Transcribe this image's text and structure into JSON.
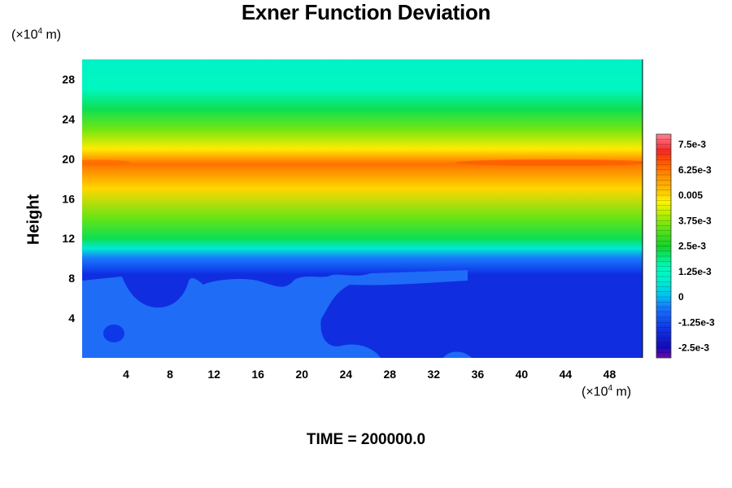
{
  "chart_data": {
    "type": "heatmap",
    "title": "Exner Function Deviation",
    "ylabel": "Height",
    "xlabel": "",
    "x_unit": {
      "prefix": "(×10",
      "exp": "4",
      "suffix": " m)"
    },
    "y_unit": {
      "prefix": "(×10",
      "exp": "4",
      "suffix": " m)"
    },
    "xlim": [
      0,
      51
    ],
    "ylim": [
      0,
      30
    ],
    "x_ticks": [
      4,
      8,
      12,
      16,
      20,
      24,
      28,
      32,
      36,
      40,
      44,
      48
    ],
    "y_ticks": [
      4,
      8,
      12,
      16,
      20,
      24,
      28
    ],
    "field_profile": [
      {
        "height": 0,
        "value": -0.0017
      },
      {
        "height": 8.4,
        "value": -0.0017
      },
      {
        "height": 9.0,
        "value": -0.0012
      },
      {
        "height": 10.0,
        "value": -0.0005
      },
      {
        "height": 11.0,
        "value": 0.0007
      },
      {
        "height": 12.0,
        "value": 0.0022
      },
      {
        "height": 14.0,
        "value": 0.0034
      },
      {
        "height": 17.0,
        "value": 0.005
      },
      {
        "height": 19.5,
        "value": 0.0063
      },
      {
        "height": 21.0,
        "value": 0.0048
      },
      {
        "height": 23.0,
        "value": 0.0035
      },
      {
        "height": 25.0,
        "value": 0.0022
      },
      {
        "height": 27.0,
        "value": 0.0013
      },
      {
        "height": 30.0,
        "value": 0.001
      }
    ],
    "colorbar": {
      "min": -0.003,
      "max": 0.008,
      "tick_labels": [
        {
          "value": 0.0075,
          "label": "7.5e-3"
        },
        {
          "value": 0.00625,
          "label": "6.25e-3"
        },
        {
          "value": 0.005,
          "label": "0.005"
        },
        {
          "value": 0.00375,
          "label": "3.75e-3"
        },
        {
          "value": 0.0025,
          "label": "2.5e-3"
        },
        {
          "value": 0.00125,
          "label": "1.25e-3"
        },
        {
          "value": 0,
          "label": "0"
        },
        {
          "value": -0.00125,
          "label": "-1.25e-3"
        },
        {
          "value": -0.0025,
          "label": "-2.5e-3"
        }
      ]
    },
    "footer": "TIME = 200000.0"
  }
}
